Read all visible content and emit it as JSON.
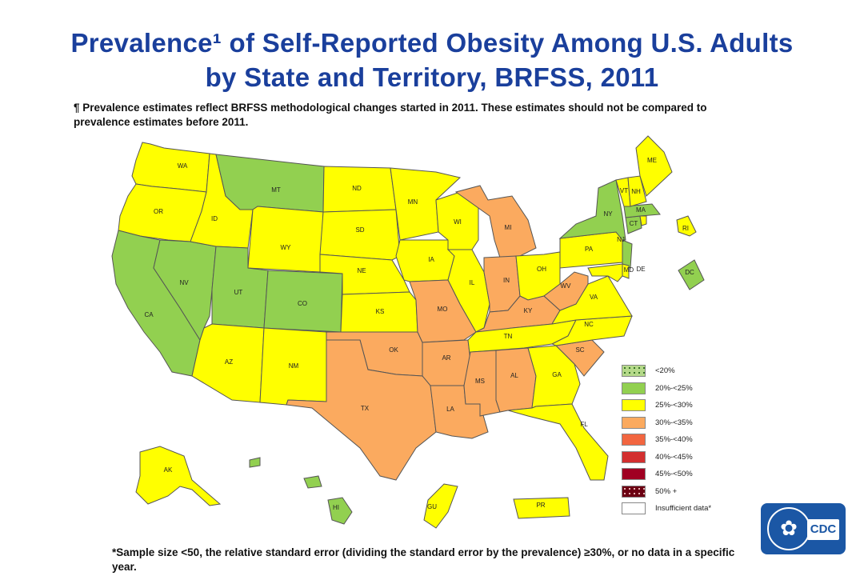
{
  "title_line1": "Prevalence¹ of Self-Reported Obesity Among U.S. Adults",
  "title_line2": "by State and Territory, BRFSS, 2011",
  "note": "¶ Prevalence estimates reflect BRFSS methodological changes started in 2011. These estimates should not be compared to prevalence estimates before 2011.",
  "footnote": "*Sample size <50, the relative standard error (dividing the standard error by the prevalence) ≥30%, or no data in a specific year.",
  "legend": [
    {
      "label": "<20%",
      "color": "#b5d98a"
    },
    {
      "label": "20%-<25%",
      "color": "#92d050"
    },
    {
      "label": "25%-<30%",
      "color": "#ffff00"
    },
    {
      "label": "30%-<35%",
      "color": "#fbaa5f"
    },
    {
      "label": "35%-<40%",
      "color": "#f26640"
    },
    {
      "label": "40%-<45%",
      "color": "#d32f2f"
    },
    {
      "label": "45%-<50%",
      "color": "#a00022"
    },
    {
      "label": "50% +",
      "color": "#6b0012"
    },
    {
      "label": "Insufficient data*",
      "color": "#ffffff"
    }
  ],
  "states": {
    "WA": "25%-<30%",
    "OR": "25%-<30%",
    "CA": "20%-<25%",
    "NV": "20%-<25%",
    "ID": "25%-<30%",
    "MT": "20%-<25%",
    "WY": "25%-<30%",
    "UT": "20%-<25%",
    "CO": "20%-<25%",
    "AZ": "25%-<30%",
    "NM": "25%-<30%",
    "ND": "25%-<30%",
    "SD": "25%-<30%",
    "NE": "25%-<30%",
    "KS": "25%-<30%",
    "OK": "30%-<35%",
    "TX": "30%-<35%",
    "MN": "25%-<30%",
    "IA": "25%-<30%",
    "MO": "30%-<35%",
    "AR": "30%-<35%",
    "LA": "30%-<35%",
    "WI": "25%-<30%",
    "IL": "25%-<30%",
    "MI": "30%-<35%",
    "IN": "30%-<35%",
    "OH": "25%-<30%",
    "KY": "30%-<35%",
    "TN": "25%-<30%",
    "MS": "30%-<35%",
    "AL": "30%-<35%",
    "GA": "25%-<30%",
    "FL": "25%-<30%",
    "SC": "30%-<35%",
    "NC": "25%-<30%",
    "VA": "25%-<30%",
    "WV": "30%-<35%",
    "PA": "25%-<30%",
    "NY": "20%-<25%",
    "VT": "25%-<30%",
    "NH": "25%-<30%",
    "ME": "25%-<30%",
    "MA": "20%-<25%",
    "RI": "25%-<30%",
    "CT": "20%-<25%",
    "NJ": "20%-<25%",
    "DE": "25%-<30%",
    "MD": "25%-<30%",
    "DC": "20%-<25%",
    "AK": "25%-<30%",
    "HI": "20%-<25%",
    "GU": "25%-<30%",
    "PR": "25%-<30%"
  },
  "map_labels": [
    "WA",
    "OR",
    "CA",
    "NV",
    "ID",
    "MT",
    "WY",
    "UT",
    "CO",
    "AZ",
    "NM",
    "ND",
    "SD",
    "NE",
    "KS",
    "OK",
    "TX",
    "MN",
    "IA",
    "MO",
    "AR",
    "LA",
    "WI",
    "IL",
    "MI",
    "IN",
    "OH",
    "KY",
    "TN",
    "MS",
    "AL",
    "GA",
    "FL",
    "SC",
    "NC",
    "VA",
    "WV",
    "PA",
    "NY",
    "VT",
    "NH",
    "ME",
    "MA",
    "RI",
    "CT",
    "NJ",
    "DE",
    "MD",
    "DC",
    "AK",
    "HI",
    "GU",
    "PR"
  ],
  "logo_text": "CDC"
}
